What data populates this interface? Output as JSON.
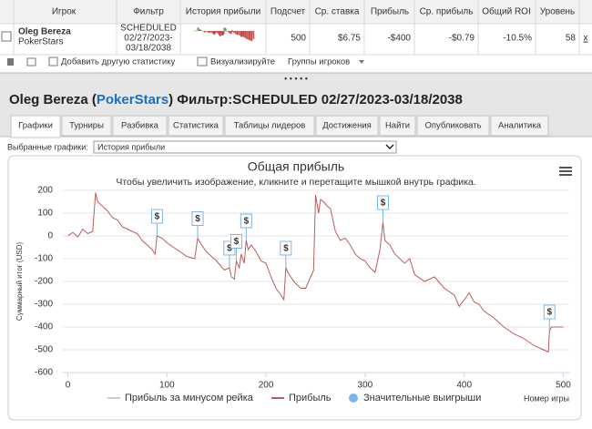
{
  "table": {
    "headers": [
      "Игрок",
      "Фильтр",
      "История прибыли",
      "Подсчет",
      "Ср. ставка",
      "Прибыль",
      "Ср. прибыль",
      "Общий ROI",
      "Уровень"
    ],
    "row": {
      "player": "Oleg Bereza",
      "site": "PokerStars",
      "filter": [
        "SCHEDULED",
        "02/27/2023-",
        "03/18/2038"
      ],
      "cells": [
        "500",
        "$6.75",
        "-$400",
        "-$0.79",
        "-10.5%",
        "58"
      ],
      "remove": "x"
    }
  },
  "toolbar": [
    "Добавить другую статистику",
    "Визуализируйте",
    "Группы игроков"
  ],
  "header": {
    "title_parts": [
      "Oleg Bereza (",
      "PokerStars",
      ") Фильтр:SCHEDULED 02/27/2023-03/18/2038"
    ]
  },
  "tabs": [
    "Графики",
    "Турниры",
    "Разбивка",
    "Статистика",
    "Таблицы лидеров",
    "Достижения",
    "Найти",
    "Опубликовать",
    "Аналитика"
  ],
  "chart_select": {
    "label": "Выбранные графики:",
    "value": "История прибыли"
  },
  "chart_data": {
    "type": "line",
    "title": "Общая прибыль",
    "subtitle": "Чтобы увеличить изображение, кликните и перетащите мышкой внутрь графика.",
    "y_label": "Суммарный итог (USD)",
    "x_label": "Номер игры",
    "xlim": [
      -6,
      506
    ],
    "ylim": [
      -600,
      200
    ],
    "xticks": [
      0,
      100,
      200,
      300,
      400,
      500
    ],
    "yticks": [
      -600,
      -500,
      -400,
      -300,
      -200,
      -100,
      0,
      100,
      200
    ],
    "grid": true,
    "legend_only": [
      {
        "name": "Прибыль за минусом рейка",
        "color": "#cccccc"
      }
    ],
    "series": [
      {
        "name": "Прибыль",
        "color": "#b85c5c",
        "x": [
          0,
          5,
          10,
          15,
          20,
          25,
          28,
          30,
          35,
          40,
          45,
          50,
          55,
          60,
          65,
          70,
          75,
          80,
          85,
          88,
          90,
          95,
          100,
          110,
          120,
          128,
          131,
          135,
          140,
          150,
          158,
          163,
          165,
          168,
          170,
          173,
          175,
          178,
          180,
          182,
          185,
          190,
          195,
          200,
          205,
          210,
          215,
          218,
          220,
          222,
          228,
          235,
          240,
          245,
          248,
          250,
          253,
          255,
          258,
          262,
          265,
          270,
          275,
          280,
          285,
          290,
          295,
          300,
          305,
          310,
          315,
          318,
          320,
          325,
          330,
          340,
          345,
          350,
          360,
          370,
          380,
          390,
          395,
          400,
          405,
          410,
          415,
          420,
          430,
          440,
          450,
          460,
          470,
          480,
          485,
          486,
          488,
          500
        ],
        "values": [
          0,
          15,
          -5,
          30,
          10,
          20,
          190,
          150,
          130,
          110,
          80,
          70,
          40,
          30,
          20,
          10,
          -20,
          -40,
          -60,
          -80,
          0,
          -10,
          -30,
          -60,
          -90,
          -100,
          -10,
          -40,
          -70,
          -110,
          -150,
          -140,
          -180,
          -190,
          -110,
          -140,
          -80,
          -120,
          -20,
          -60,
          -40,
          -70,
          -110,
          -120,
          -180,
          -230,
          -260,
          -280,
          -140,
          -160,
          -200,
          -230,
          -230,
          -180,
          -150,
          180,
          100,
          160,
          150,
          130,
          120,
          20,
          -20,
          -10,
          -40,
          -80,
          -100,
          -110,
          -140,
          -160,
          -60,
          60,
          -20,
          -40,
          -80,
          -120,
          -100,
          -170,
          -200,
          -180,
          -230,
          -260,
          -310,
          -280,
          -250,
          -290,
          -300,
          -330,
          -360,
          -400,
          -430,
          -450,
          -480,
          -500,
          -510,
          -420,
          -400,
          -400
        ]
      }
    ],
    "flags": {
      "name": "Значительные выигрыши",
      "color": "#7cb5ec",
      "label": "$",
      "x": [
        90,
        131,
        163,
        170,
        180,
        220,
        318,
        486
      ],
      "values": [
        0,
        -10,
        -140,
        -110,
        -20,
        -140,
        60,
        -420
      ]
    }
  }
}
